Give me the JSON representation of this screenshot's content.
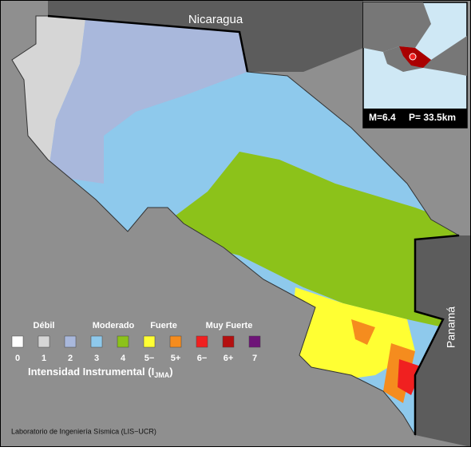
{
  "map_labels": {
    "north": "Nicaragua",
    "east": "Panamá"
  },
  "inset": {
    "magnitude": "M=6.4",
    "depth": "P= 33.5km"
  },
  "legend": {
    "groups": [
      "Débil",
      "Moderado",
      "Fuerte",
      "Muy Fuerte"
    ],
    "items": [
      {
        "label": "0",
        "color": "#ffffff"
      },
      {
        "label": "1",
        "color": "#d6d6d6"
      },
      {
        "label": "2",
        "color": "#a9b8dc"
      },
      {
        "label": "3",
        "color": "#8ec9ec"
      },
      {
        "label": "4",
        "color": "#8cc21a"
      },
      {
        "label": "5−",
        "color": "#ffff33"
      },
      {
        "label": "5+",
        "color": "#f58c1e"
      },
      {
        "label": "6−",
        "color": "#f02020"
      },
      {
        "label": "6+",
        "color": "#b40f0f"
      },
      {
        "label": "7",
        "color": "#6e1478"
      }
    ],
    "title": {
      "main": "Intensidad Instrumental (I",
      "subscript": "JMA",
      "close": ")"
    }
  },
  "credit": "Laboratorio de Ingeniería Sísmica (LIS−UCR)"
}
